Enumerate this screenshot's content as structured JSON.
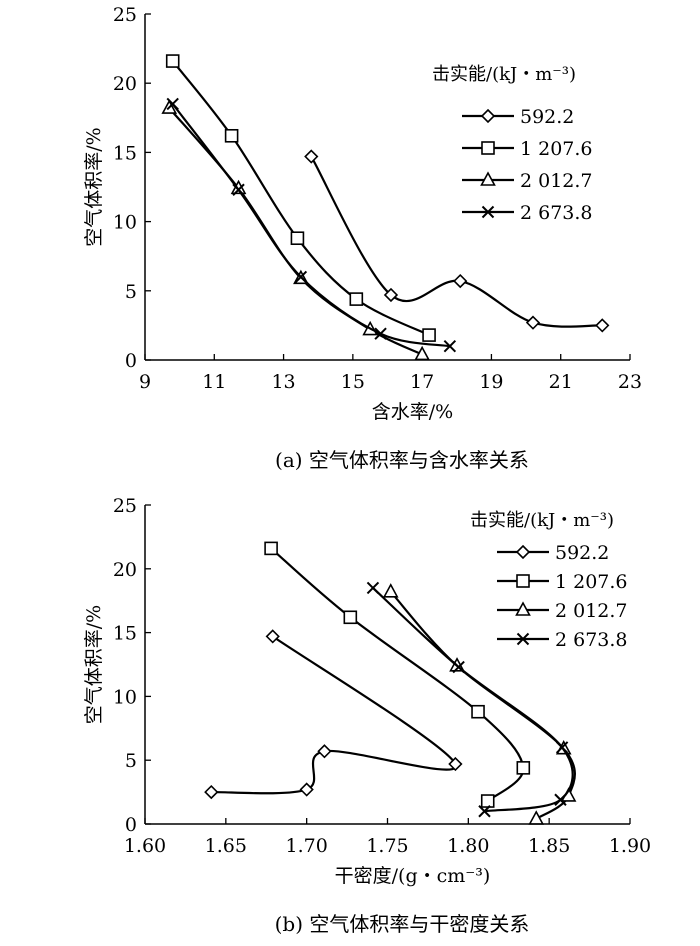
{
  "chart_data": [
    {
      "type": "line",
      "caption": "(a) 空气体积率与含水率关系",
      "xlabel": "含水率/%",
      "ylabel": "空气体积率/%",
      "xlim": [
        9,
        23
      ],
      "ylim": [
        0,
        25
      ],
      "xticks": [
        9,
        11,
        13,
        15,
        17,
        19,
        21,
        23
      ],
      "yticks": [
        0,
        5,
        10,
        15,
        20,
        25
      ],
      "legend_title": "击实能/(kJ・m⁻³)",
      "legend_position": "top-right",
      "grid": false,
      "series": [
        {
          "name": "592.2",
          "marker": "diamond",
          "points": [
            [
              13.8,
              14.7
            ],
            [
              16.1,
              4.7
            ],
            [
              18.1,
              5.7
            ],
            [
              20.2,
              2.7
            ],
            [
              22.2,
              2.5
            ]
          ]
        },
        {
          "name": "1 207.6",
          "marker": "square",
          "points": [
            [
              9.8,
              21.6
            ],
            [
              11.5,
              16.2
            ],
            [
              13.4,
              8.8
            ],
            [
              15.1,
              4.4
            ],
            [
              17.2,
              1.8
            ]
          ]
        },
        {
          "name": "2 012.7",
          "marker": "triangle",
          "points": [
            [
              9.7,
              18.2
            ],
            [
              11.7,
              12.4
            ],
            [
              13.5,
              5.9
            ],
            [
              15.5,
              2.2
            ],
            [
              17.0,
              0.4
            ]
          ]
        },
        {
          "name": "2 673.8",
          "marker": "x",
          "points": [
            [
              9.8,
              18.5
            ],
            [
              11.7,
              12.3
            ],
            [
              13.5,
              6.0
            ],
            [
              15.8,
              1.9
            ],
            [
              17.8,
              1.0
            ]
          ]
        }
      ]
    },
    {
      "type": "line",
      "caption": "(b) 空气体积率与干密度关系",
      "xlabel": "干密度/(g・cm⁻³)",
      "ylabel": "空气体积率/%",
      "xlim": [
        1.6,
        1.9
      ],
      "ylim": [
        0,
        25
      ],
      "xticks": [
        "1.60",
        "1.65",
        "1.70",
        "1.75",
        "1.80",
        "1.85",
        "1.90"
      ],
      "yticks": [
        0,
        5,
        10,
        15,
        20,
        25
      ],
      "legend_title": "击实能/(kJ・m⁻³)",
      "legend_position": "top-right",
      "grid": false,
      "series": [
        {
          "name": "592.2",
          "marker": "diamond",
          "points": [
            [
              1.679,
              14.7
            ],
            [
              1.792,
              4.7
            ],
            [
              1.711,
              5.7
            ],
            [
              1.7,
              2.7
            ],
            [
              1.641,
              2.5
            ]
          ]
        },
        {
          "name": "1 207.6",
          "marker": "square",
          "points": [
            [
              1.678,
              21.6
            ],
            [
              1.727,
              16.2
            ],
            [
              1.806,
              8.8
            ],
            [
              1.834,
              4.4
            ],
            [
              1.812,
              1.8
            ]
          ]
        },
        {
          "name": "2 012.7",
          "marker": "triangle",
          "points": [
            [
              1.752,
              18.2
            ],
            [
              1.793,
              12.4
            ],
            [
              1.859,
              5.9
            ],
            [
              1.862,
              2.2
            ],
            [
              1.842,
              0.4
            ]
          ]
        },
        {
          "name": "2 673.8",
          "marker": "x",
          "points": [
            [
              1.741,
              18.5
            ],
            [
              1.794,
              12.3
            ],
            [
              1.858,
              6.0
            ],
            [
              1.857,
              1.9
            ],
            [
              1.81,
              1.0
            ]
          ]
        }
      ]
    }
  ]
}
